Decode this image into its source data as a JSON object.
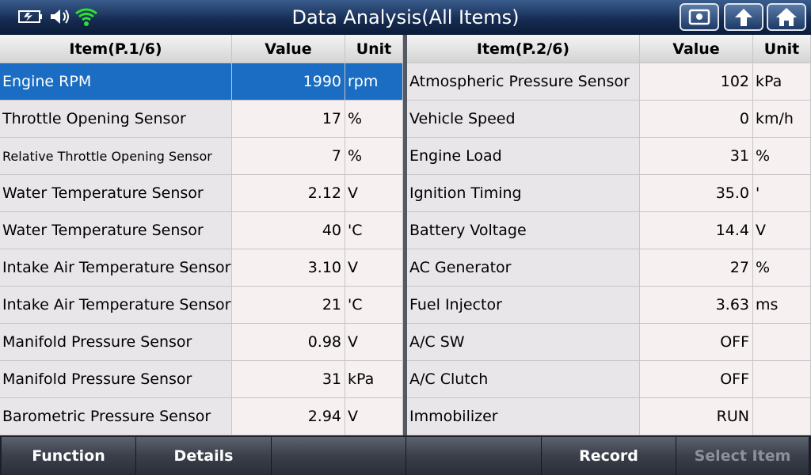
{
  "header": {
    "title": "Data Analysis(All Items)"
  },
  "tables": [
    {
      "columns": [
        "Item(P.1/6)",
        "Value",
        "Unit"
      ],
      "rows": [
        [
          "Engine RPM",
          "1990",
          "rpm"
        ],
        [
          "Throttle Opening Sensor",
          "17",
          "%"
        ],
        [
          "Relative Throttle Opening Sensor",
          "7",
          "%"
        ],
        [
          "Water Temperature Sensor",
          "2.12",
          "V"
        ],
        [
          "Water Temperature Sensor",
          "40",
          "'C"
        ],
        [
          "Intake Air Temperature Sensor",
          "3.10",
          "V"
        ],
        [
          "Intake Air Temperature Sensor",
          "21",
          "'C"
        ],
        [
          "Manifold Pressure Sensor",
          "0.98",
          "V"
        ],
        [
          "Manifold Pressure Sensor",
          "31",
          "kPa"
        ],
        [
          "Barometric Pressure Sensor",
          "2.94",
          "V"
        ]
      ]
    },
    {
      "columns": [
        "Item(P.2/6)",
        "Value",
        "Unit"
      ],
      "rows": [
        [
          "Atmospheric Pressure Sensor",
          "102",
          "kPa"
        ],
        [
          "Vehicle Speed",
          "0",
          "km/h"
        ],
        [
          "Engine Load",
          "31",
          "%"
        ],
        [
          "Ignition Timing",
          "35.0",
          "'"
        ],
        [
          "Battery Voltage",
          "14.4",
          "V"
        ],
        [
          "AC Generator",
          "27",
          "%"
        ],
        [
          "Fuel Injector",
          "3.63",
          "ms"
        ],
        [
          "A/C SW",
          "OFF"
        ],
        [
          "A/C Clutch",
          "OFF"
        ],
        [
          "Immobilizer",
          "RUN"
        ]
      ]
    }
  ],
  "footer": {
    "buttons": [
      "Function",
      "Details",
      "Record",
      "Select Item"
    ]
  }
}
